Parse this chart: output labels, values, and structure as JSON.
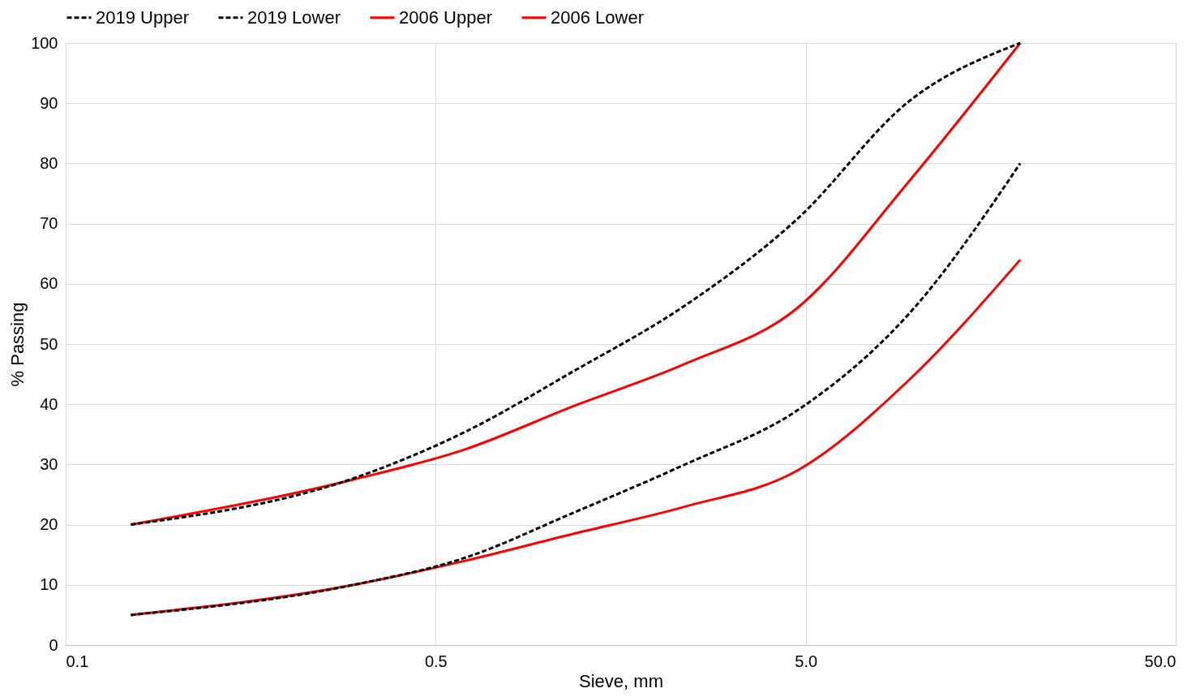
{
  "chart_data": {
    "type": "line",
    "xlabel": "Sieve, mm",
    "ylabel": "% Passing",
    "x": [
      0.075,
      0.3,
      0.6,
      1.18,
      2.36,
      4.75,
      9.5,
      19
    ],
    "series": [
      {
        "name": "2019 Upper",
        "color": "#000000",
        "line_style": "dashed",
        "values": [
          20,
          27.7,
          35.4,
          45.5,
          56.4,
          70.8,
          90.3,
          100
        ]
      },
      {
        "name": "2019 Lower",
        "color": "#000000",
        "line_style": "dashed",
        "values": [
          5,
          10,
          14.5,
          22,
          30,
          39,
          55,
          80
        ]
      },
      {
        "name": "2006 Upper",
        "color": "#ff0000",
        "line_style": "solid",
        "values": [
          20,
          27.5,
          32.5,
          39.7,
          46.7,
          56,
          77,
          100
        ]
      },
      {
        "name": "2006 Lower",
        "color": "#ff0000",
        "line_style": "solid",
        "values": [
          5,
          10,
          14,
          18.5,
          23,
          29,
          44,
          64
        ]
      }
    ],
    "log": "x",
    "xlim": [
      0.05,
      50
    ],
    "xticks": [
      {
        "value": 0.05,
        "label": "0.1"
      },
      {
        "value": 0.5,
        "label": "0.5"
      },
      {
        "value": 5,
        "label": "5.0"
      },
      {
        "value": 50,
        "label": "50.0"
      }
    ],
    "ylim": [
      0,
      100
    ],
    "yticks": [
      0,
      10,
      20,
      30,
      40,
      50,
      60,
      70,
      80,
      90,
      100
    ],
    "grid": true,
    "legend": "top",
    "marker": "none"
  }
}
